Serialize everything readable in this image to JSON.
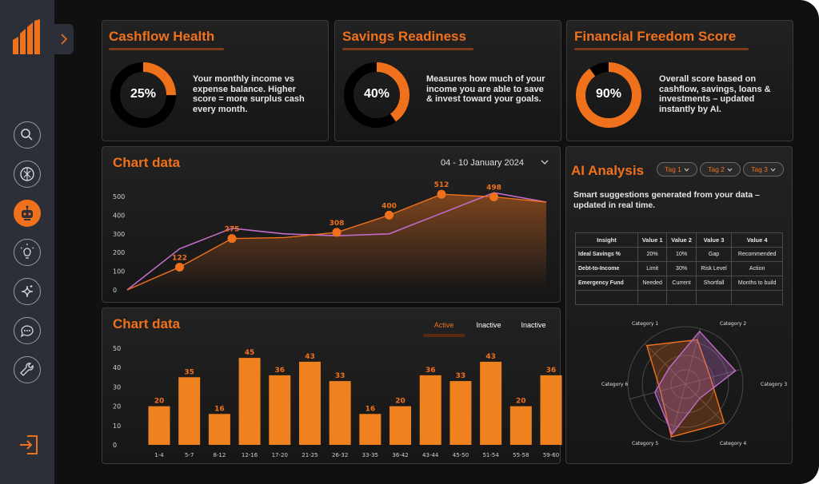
{
  "sidebar": {
    "nav": [
      {
        "icon": "search-icon",
        "name": "nav-search"
      },
      {
        "icon": "openai-icon",
        "name": "nav-ai"
      },
      {
        "icon": "robot-icon",
        "name": "nav-bot"
      },
      {
        "icon": "lightbulb-icon",
        "name": "nav-ideas"
      },
      {
        "icon": "sparkle-icon",
        "name": "nav-sparkle"
      },
      {
        "icon": "chat-icon",
        "name": "nav-chat"
      },
      {
        "icon": "wrench-icon",
        "name": "nav-tools"
      }
    ],
    "active_index": 2
  },
  "cards": {
    "cashflow": {
      "title": "Cashflow Health",
      "value": "25%",
      "fraction": 0.25,
      "desc_lines": [
        "Your monthly income vs",
        "expense balance. Higher",
        "score = more surplus cash",
        "every month."
      ]
    },
    "savings": {
      "title": "Savings Readiness",
      "value": "40%",
      "fraction": 0.4,
      "desc_lines": [
        "Measures how much of your",
        "income you are able to save",
        "& invest toward your goals."
      ]
    },
    "freedom": {
      "title": "Financial Freedom Score",
      "value": "90%",
      "fraction": 0.9,
      "desc_lines": [
        "Overall score based on",
        "cashflow, savings, loans &",
        "investments – updated",
        "instantly by AI."
      ]
    }
  },
  "line_chart": {
    "title": "Chart data",
    "date_range": "04 - 10 January 2024"
  },
  "bar_chart": {
    "title": "Chart data",
    "tabs": [
      "Active",
      "Inactive",
      "Inactive"
    ]
  },
  "ai": {
    "title": "AI Analysis",
    "tags": [
      "Tag 1",
      "Tag 2",
      "Tag 3"
    ],
    "subtitle_lines": [
      "Smart suggestions generated from your data –",
      "updated in real time."
    ],
    "table": {
      "headers": [
        "Insight",
        "Value 1",
        "Value 2",
        "Value 3",
        "Value 4"
      ],
      "rows": [
        [
          "Ideal Savings %",
          "20%",
          "10%",
          "Gap",
          "Recommended"
        ],
        [
          "Debt-to-Income",
          "Limit",
          "30%",
          "Risk Level",
          "Action"
        ],
        [
          "Emergency Fund",
          "Needed",
          "Current",
          "Shortfall",
          "Months to build"
        ],
        [
          "",
          "",
          "",
          "",
          ""
        ]
      ]
    }
  },
  "colors": {
    "accent": "#f0711c",
    "purple": "#c06cc8",
    "bg": "#101010"
  },
  "chart_data": [
    {
      "type": "line",
      "title": "Chart data",
      "ylim": [
        0,
        500
      ],
      "y_ticks": [
        "500",
        "400",
        "300",
        "200",
        "100",
        "0"
      ],
      "x": [
        0,
        1,
        2,
        3,
        4,
        5,
        6,
        7,
        8
      ],
      "series": [
        {
          "values": [
            0,
            122,
            275,
            280,
            308,
            400,
            512,
            498,
            470
          ],
          "labels": [
            "",
            "122",
            "275",
            "",
            "308",
            "400",
            "512",
            "498",
            ""
          ]
        },
        {
          "values": [
            0,
            220,
            330,
            300,
            290,
            300,
            410,
            520,
            470
          ]
        }
      ]
    },
    {
      "type": "bar",
      "title": "Chart data",
      "ylim": [
        0,
        50
      ],
      "y_ticks": [
        "50",
        "40",
        "30",
        "20",
        "10",
        "0"
      ],
      "categories": [
        "1-4",
        "5-7",
        "8-12",
        "12-16",
        "17-20",
        "21-25",
        "26-32",
        "33-35",
        "36-42",
        "43-44",
        "45-50",
        "51-54",
        "55-58",
        "59-60"
      ],
      "values": [
        20,
        35,
        16,
        45,
        36,
        43,
        33,
        16,
        20,
        36,
        33,
        43,
        20,
        36
      ]
    },
    {
      "type": "radar",
      "categories": [
        "Category 1",
        "Category 2",
        "Category 3",
        "Category 4",
        "Category 5",
        "Category 6"
      ],
      "series": [
        {
          "values": [
            0.8,
            0.45,
            0.95,
            0.95,
            0.45,
            0.95
          ]
        },
        {
          "values": [
            0.95,
            0.9,
            0.35,
            0.9,
            0.55,
            0.4
          ]
        }
      ]
    }
  ]
}
